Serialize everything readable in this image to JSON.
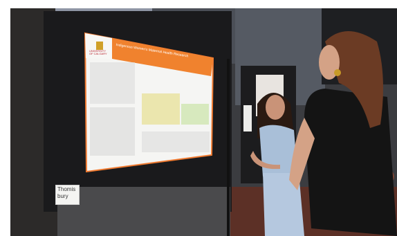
{
  "photo": {
    "poster": {
      "logo_text": "UNIVERSITY OF CALGARY",
      "title": "Indigenous Women's Maternal Health Research"
    },
    "name_card": {
      "line1": "Thomis",
      "line2": "bury"
    }
  }
}
